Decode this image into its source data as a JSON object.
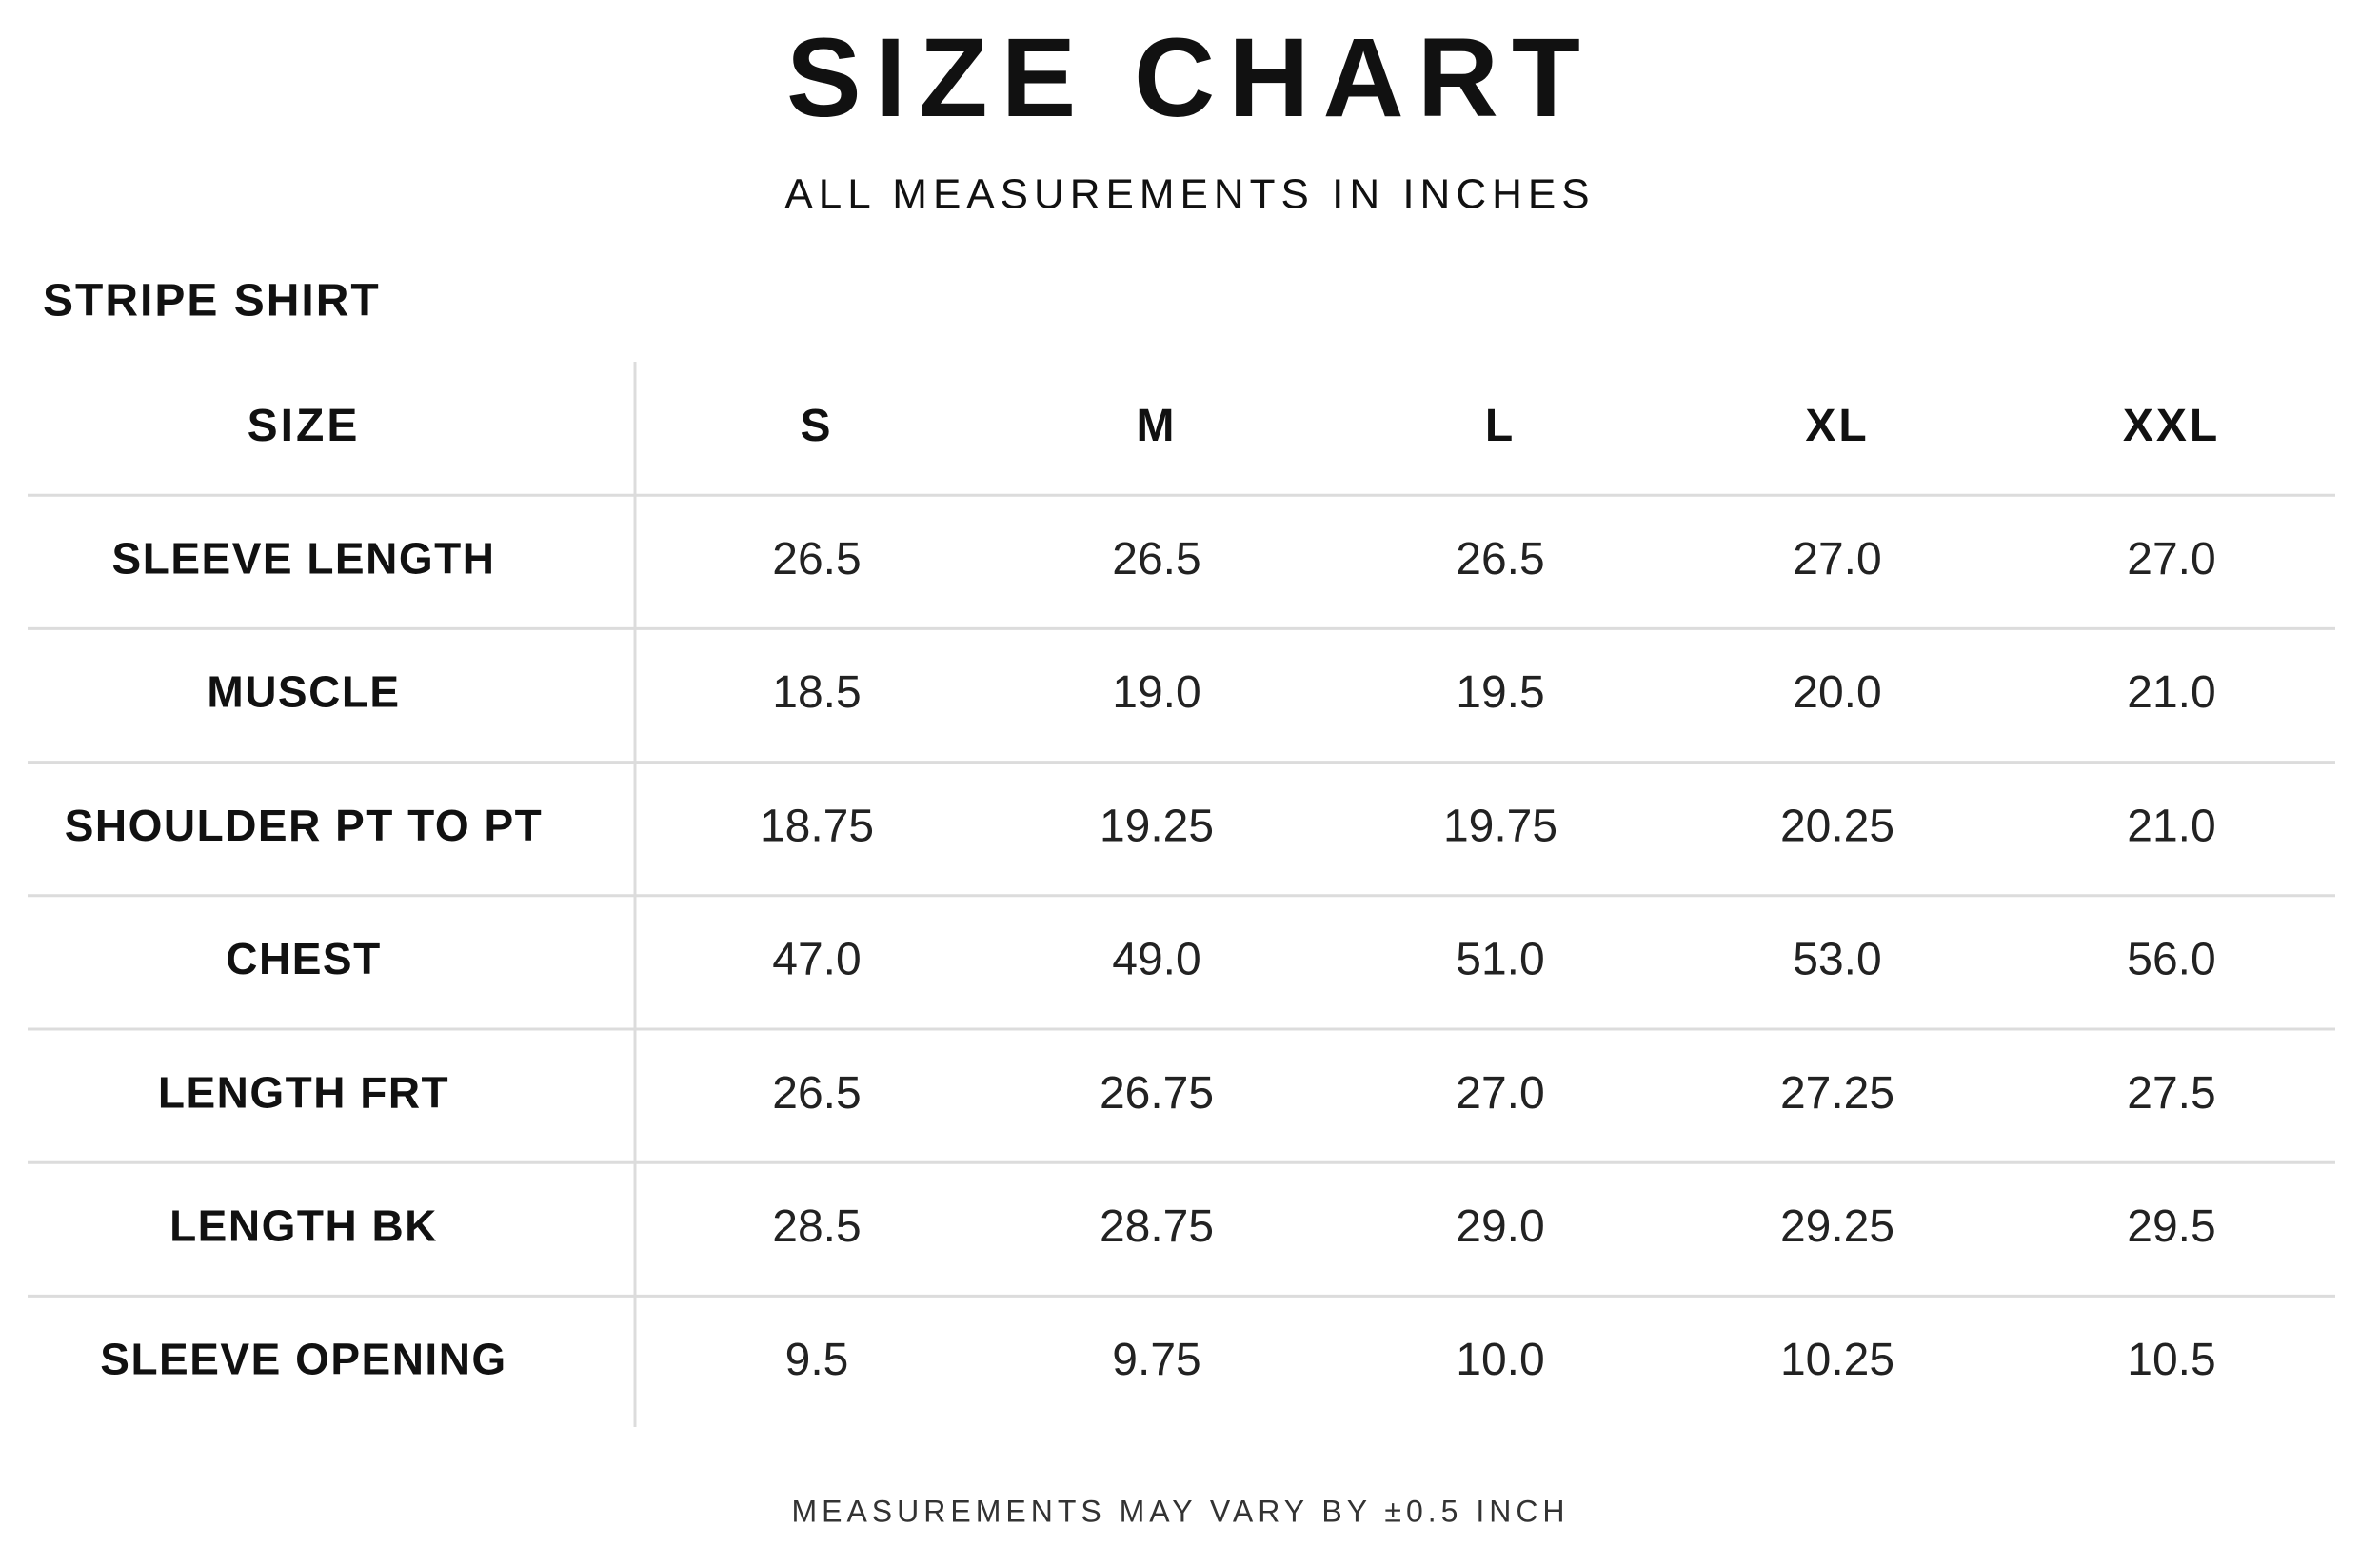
{
  "title": "SIZE CHART",
  "subtitle": "ALL MEASUREMENTS IN INCHES",
  "section": "STRIPE SHIRT",
  "table": {
    "header": [
      "SIZE",
      "S",
      "M",
      "L",
      "XL",
      "XXL"
    ],
    "rows": [
      [
        "SLEEVE LENGTH",
        "26.5",
        "26.5",
        "26.5",
        "27.0",
        "27.0"
      ],
      [
        "MUSCLE",
        "18.5",
        "19.0",
        "19.5",
        "20.0",
        "21.0"
      ],
      [
        "SHOULDER PT TO PT",
        "18.75",
        "19.25",
        "19.75",
        "20.25",
        "21.0"
      ],
      [
        "CHEST",
        "47.0",
        "49.0",
        "51.0",
        "53.0",
        "56.0"
      ],
      [
        "LENGTH FRT",
        "26.5",
        "26.75",
        "27.0",
        "27.25",
        "27.5"
      ],
      [
        "LENGTH BK",
        "28.5",
        "28.75",
        "29.0",
        "29.25",
        "29.5"
      ],
      [
        "SLEEVE OPENING",
        "9.5",
        "9.75",
        "10.0",
        "10.25",
        "10.5"
      ]
    ]
  },
  "footer": "MEASUREMENTS MAY VARY BY ±0.5 INCH"
}
